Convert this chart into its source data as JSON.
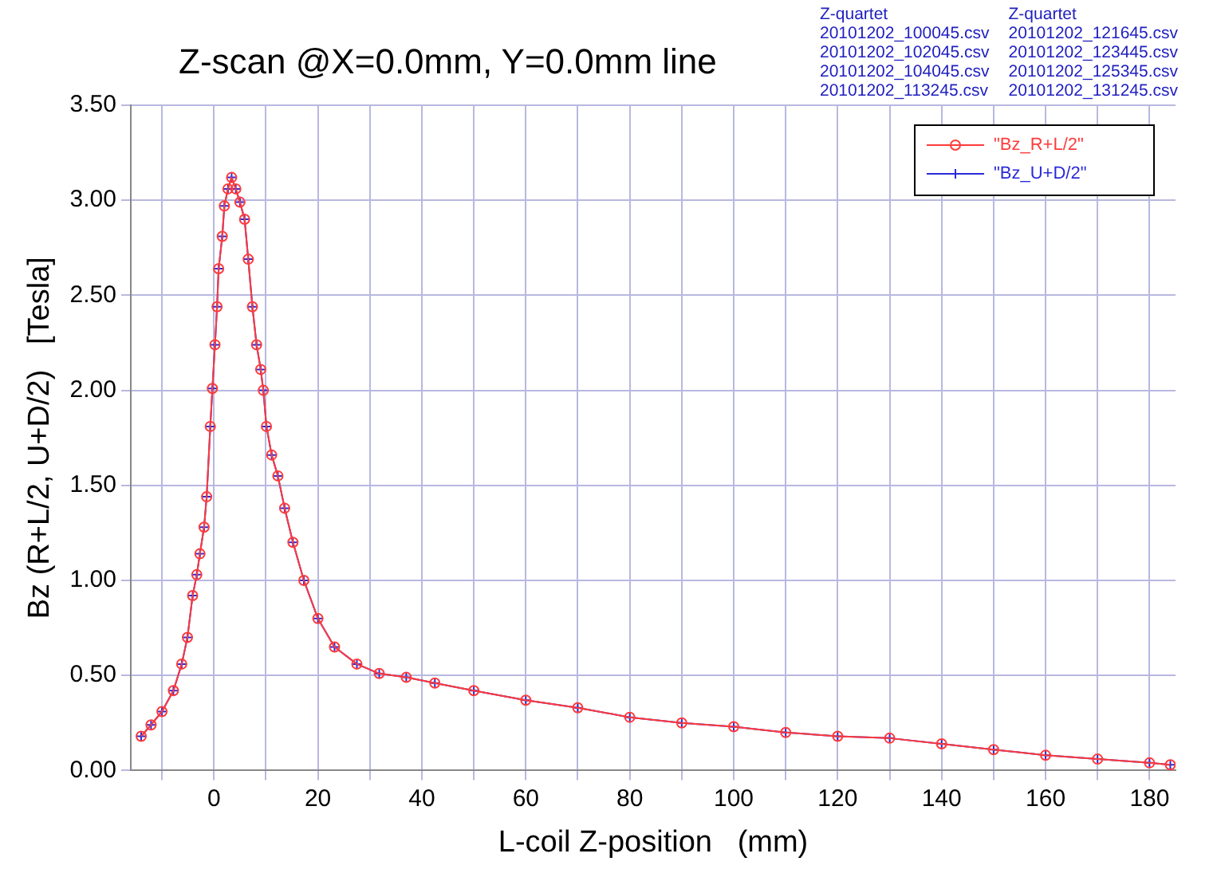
{
  "chart_data": {
    "type": "line",
    "title": "Z-scan @X=0.0mm, Y=0.0mm line",
    "xlabel": "L-coil Z-position   (mm)",
    "ylabel": "Bz (R+L/2, U+D/2)   [Tesla]",
    "annotations": [
      "Z-quartet",
      "20101202_100045.csv",
      "20101202_102045.csv",
      "20101202_104045.csv",
      "20101202_113245.csv",
      "Z-quartet",
      "20101202_121645.csv",
      "20101202_123445.csv",
      "20101202_125345.csv",
      "20101202_131245.csv"
    ],
    "x": [
      -14,
      -12.1,
      -10,
      -7.8,
      -6.2,
      -5.1,
      -4.1,
      -3.3,
      -2.7,
      -1.9,
      -1.4,
      -0.7,
      -0.3,
      0.2,
      0.6,
      0.9,
      1.6,
      2,
      2.7,
      3.4,
      4.2,
      5,
      5.9,
      6.6,
      7.4,
      8.2,
      9,
      9.5,
      10.1,
      11.1,
      12.3,
      13.6,
      15.2,
      17.3,
      20,
      23.2,
      27.5,
      31.8,
      37,
      42.5,
      50,
      60,
      70,
      80,
      90,
      100,
      110,
      120,
      130,
      140,
      150,
      160,
      170,
      180,
      184
    ],
    "series": [
      {
        "name": "\"Bz_R+L/2\"",
        "color": "#ff3b3b",
        "marker": "circle",
        "values": [
          0.18,
          0.24,
          0.31,
          0.42,
          0.56,
          0.7,
          0.92,
          1.03,
          1.14,
          1.28,
          1.44,
          1.81,
          2.01,
          2.24,
          2.44,
          2.64,
          2.81,
          2.97,
          3.06,
          3.12,
          3.06,
          2.99,
          2.9,
          2.69,
          2.44,
          2.24,
          2.11,
          2,
          1.81,
          1.66,
          1.55,
          1.38,
          1.2,
          1,
          0.8,
          0.65,
          0.56,
          0.51,
          0.49,
          0.46,
          0.42,
          0.37,
          0.33,
          0.28,
          0.25,
          0.23,
          0.2,
          0.18,
          0.17,
          0.14,
          0.11,
          0.08,
          0.06,
          0.04,
          0.03
        ]
      },
      {
        "name": "\"Bz_U+D/2\"",
        "color": "#2a2ad8",
        "marker": "cross",
        "values": [
          0.18,
          0.24,
          0.31,
          0.42,
          0.56,
          0.7,
          0.92,
          1.03,
          1.14,
          1.28,
          1.44,
          1.81,
          2.01,
          2.24,
          2.44,
          2.64,
          2.81,
          2.97,
          3.06,
          3.12,
          3.06,
          2.99,
          2.9,
          2.69,
          2.44,
          2.24,
          2.11,
          2,
          1.81,
          1.66,
          1.55,
          1.38,
          1.2,
          1,
          0.8,
          0.65,
          0.56,
          0.51,
          0.49,
          0.46,
          0.42,
          0.37,
          0.33,
          0.28,
          0.25,
          0.23,
          0.2,
          0.18,
          0.17,
          0.14,
          0.11,
          0.08,
          0.06,
          0.04,
          0.03
        ]
      }
    ],
    "xlim": [
      -16,
      185
    ],
    "xticks": [
      {
        "value": -10,
        "label": null
      },
      0,
      {
        "value": 10,
        "label": null
      },
      20,
      {
        "value": 30,
        "label": null
      },
      40,
      {
        "value": 50,
        "label": null
      },
      60,
      {
        "value": 70,
        "label": null
      },
      80,
      {
        "value": 90,
        "label": null
      },
      100,
      {
        "value": 110,
        "label": null
      },
      120,
      {
        "value": 130,
        "label": null
      },
      140,
      {
        "value": 150,
        "label": null
      },
      160,
      {
        "value": 170,
        "label": null
      },
      180
    ],
    "ylim": [
      0,
      3.5
    ],
    "yticks": [
      {
        "value": 0,
        "label": "0.00"
      },
      {
        "value": 0.5,
        "label": "0.50"
      },
      {
        "value": 1,
        "label": "1.00"
      },
      {
        "value": 1.5,
        "label": "1.50"
      },
      {
        "value": 2,
        "label": "2.00"
      },
      {
        "value": 2.5,
        "label": "2.50"
      },
      {
        "value": 3,
        "label": "3.00"
      },
      {
        "value": 3.5,
        "label": "3.50"
      }
    ],
    "grid": true,
    "legend": "top right",
    "line_style": "solid"
  }
}
